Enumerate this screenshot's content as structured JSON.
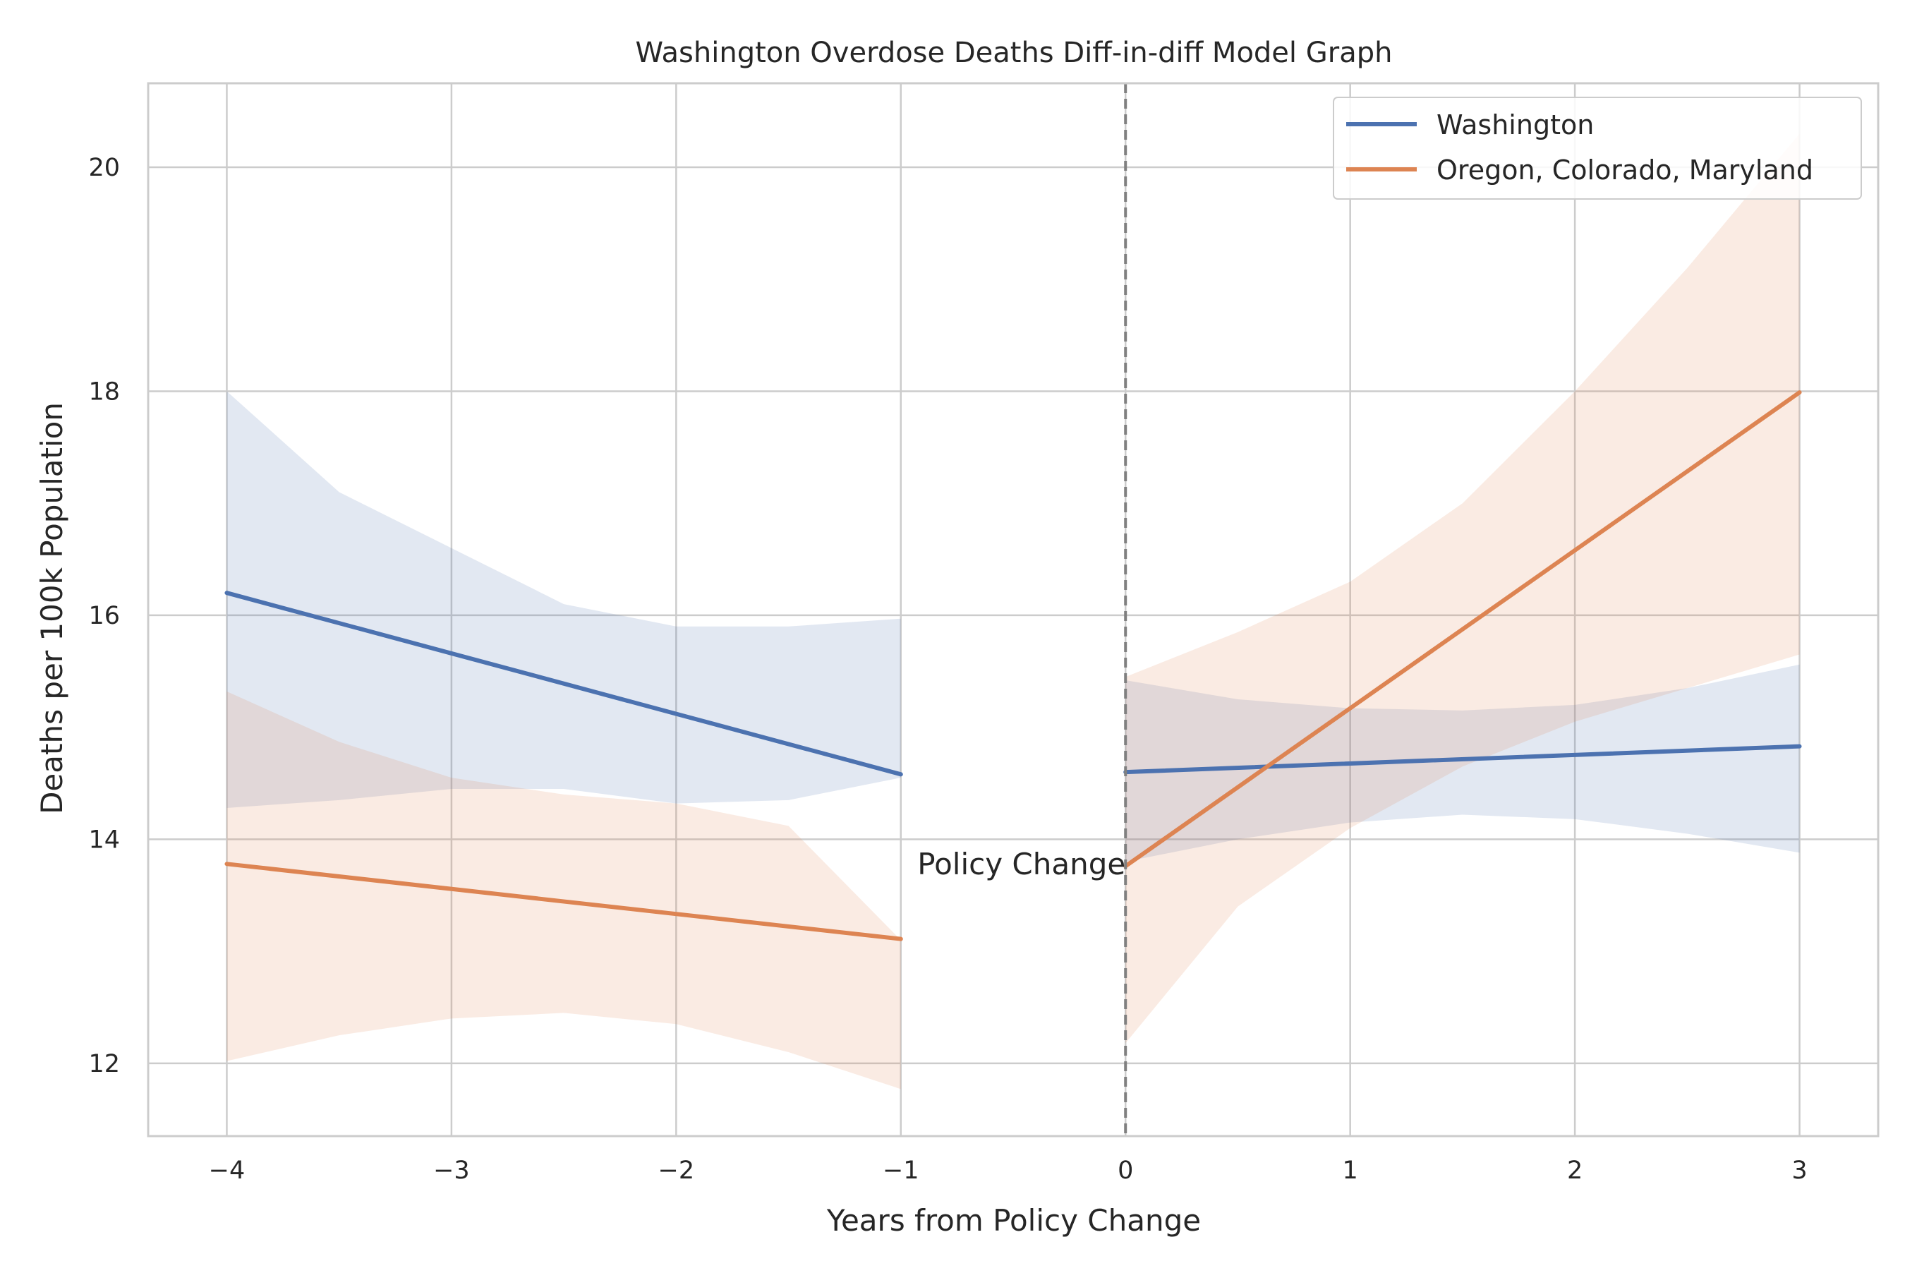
{
  "chart_data": {
    "type": "line",
    "title": "Washington Overdose Deaths Diff-in-diff Model Graph",
    "xlabel": "Years from Policy Change",
    "ylabel": "Deaths per 100k Population",
    "xlim": [
      -4.35,
      3.35
    ],
    "ylim": [
      11.35,
      20.75
    ],
    "xticks": [
      -4,
      -3,
      -2,
      -1,
      0,
      1,
      2,
      3
    ],
    "xtick_labels": [
      "−4",
      "−3",
      "−2",
      "−1",
      "0",
      "1",
      "2",
      "3"
    ],
    "yticks": [
      12,
      14,
      16,
      18,
      20
    ],
    "ytick_labels": [
      "12",
      "14",
      "16",
      "18",
      "20"
    ],
    "grid": true,
    "legend_position": "top-right",
    "annotation": {
      "text": "Policy Change",
      "x": 0,
      "y": 13.75
    },
    "vertical_line_x": 0,
    "colors": {
      "washington": "#4c72b0",
      "comparison": "#dd8452",
      "grid": "#cccccc",
      "spine": "#cccccc",
      "vline": "#808080"
    },
    "series": [
      {
        "name": "Washington",
        "color": "#4c72b0",
        "segments": [
          {
            "x": [
              -4,
              -1
            ],
            "y": [
              16.2,
              14.58
            ],
            "band_x": [
              -4,
              -3.5,
              -3,
              -2.5,
              -2,
              -1.5,
              -1
            ],
            "band_upper": [
              18.0,
              17.1,
              16.6,
              16.1,
              15.9,
              15.9,
              15.97
            ],
            "band_lower": [
              14.28,
              14.35,
              14.45,
              14.45,
              14.32,
              14.35,
              14.55
            ]
          },
          {
            "x": [
              0,
              3
            ],
            "y": [
              14.6,
              14.83
            ],
            "band_x": [
              0,
              0.5,
              1,
              1.5,
              2,
              2.5,
              3
            ],
            "band_upper": [
              15.42,
              15.25,
              15.17,
              15.15,
              15.2,
              15.35,
              15.56
            ],
            "band_lower": [
              13.8,
              14.0,
              14.15,
              14.22,
              14.18,
              14.05,
              13.88
            ]
          }
        ]
      },
      {
        "name": "Oregon, Colorado, Maryland",
        "color": "#dd8452",
        "segments": [
          {
            "x": [
              -4,
              -1
            ],
            "y": [
              13.78,
              13.11
            ],
            "band_x": [
              -4,
              -3.5,
              -3,
              -2.5,
              -2,
              -1.5,
              -1
            ],
            "band_upper": [
              15.32,
              14.87,
              14.55,
              14.4,
              14.32,
              14.12,
              13.1
            ],
            "band_lower": [
              12.02,
              12.25,
              12.4,
              12.45,
              12.35,
              12.1,
              11.77
            ]
          },
          {
            "x": [
              0,
              3
            ],
            "y": [
              13.76,
              17.99
            ],
            "band_x": [
              0,
              0.5,
              1,
              1.5,
              2,
              2.5,
              3
            ],
            "band_upper": [
              15.45,
              15.85,
              16.3,
              17.0,
              18.0,
              19.1,
              20.3
            ],
            "band_lower": [
              12.18,
              13.4,
              14.1,
              14.65,
              15.05,
              15.35,
              15.65
            ]
          }
        ]
      }
    ]
  }
}
